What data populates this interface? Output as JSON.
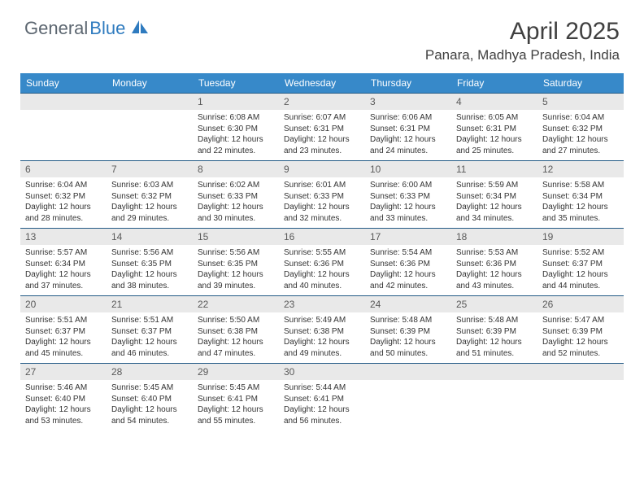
{
  "brand": {
    "name_a": "General",
    "name_b": "Blue"
  },
  "title": "April 2025",
  "location": "Panara, Madhya Pradesh, India",
  "day_headers": [
    "Sunday",
    "Monday",
    "Tuesday",
    "Wednesday",
    "Thursday",
    "Friday",
    "Saturday"
  ],
  "colors": {
    "header_bg": "#3789c9",
    "header_text": "#ffffff",
    "daynum_bg": "#e9e9e9",
    "cell_border": "#235a86"
  },
  "weeks": [
    [
      null,
      null,
      {
        "n": "1",
        "sunrise": "6:08 AM",
        "sunset": "6:30 PM",
        "daylight": "12 hours and 22 minutes."
      },
      {
        "n": "2",
        "sunrise": "6:07 AM",
        "sunset": "6:31 PM",
        "daylight": "12 hours and 23 minutes."
      },
      {
        "n": "3",
        "sunrise": "6:06 AM",
        "sunset": "6:31 PM",
        "daylight": "12 hours and 24 minutes."
      },
      {
        "n": "4",
        "sunrise": "6:05 AM",
        "sunset": "6:31 PM",
        "daylight": "12 hours and 25 minutes."
      },
      {
        "n": "5",
        "sunrise": "6:04 AM",
        "sunset": "6:32 PM",
        "daylight": "12 hours and 27 minutes."
      }
    ],
    [
      {
        "n": "6",
        "sunrise": "6:04 AM",
        "sunset": "6:32 PM",
        "daylight": "12 hours and 28 minutes."
      },
      {
        "n": "7",
        "sunrise": "6:03 AM",
        "sunset": "6:32 PM",
        "daylight": "12 hours and 29 minutes."
      },
      {
        "n": "8",
        "sunrise": "6:02 AM",
        "sunset": "6:33 PM",
        "daylight": "12 hours and 30 minutes."
      },
      {
        "n": "9",
        "sunrise": "6:01 AM",
        "sunset": "6:33 PM",
        "daylight": "12 hours and 32 minutes."
      },
      {
        "n": "10",
        "sunrise": "6:00 AM",
        "sunset": "6:33 PM",
        "daylight": "12 hours and 33 minutes."
      },
      {
        "n": "11",
        "sunrise": "5:59 AM",
        "sunset": "6:34 PM",
        "daylight": "12 hours and 34 minutes."
      },
      {
        "n": "12",
        "sunrise": "5:58 AM",
        "sunset": "6:34 PM",
        "daylight": "12 hours and 35 minutes."
      }
    ],
    [
      {
        "n": "13",
        "sunrise": "5:57 AM",
        "sunset": "6:34 PM",
        "daylight": "12 hours and 37 minutes."
      },
      {
        "n": "14",
        "sunrise": "5:56 AM",
        "sunset": "6:35 PM",
        "daylight": "12 hours and 38 minutes."
      },
      {
        "n": "15",
        "sunrise": "5:56 AM",
        "sunset": "6:35 PM",
        "daylight": "12 hours and 39 minutes."
      },
      {
        "n": "16",
        "sunrise": "5:55 AM",
        "sunset": "6:36 PM",
        "daylight": "12 hours and 40 minutes."
      },
      {
        "n": "17",
        "sunrise": "5:54 AM",
        "sunset": "6:36 PM",
        "daylight": "12 hours and 42 minutes."
      },
      {
        "n": "18",
        "sunrise": "5:53 AM",
        "sunset": "6:36 PM",
        "daylight": "12 hours and 43 minutes."
      },
      {
        "n": "19",
        "sunrise": "5:52 AM",
        "sunset": "6:37 PM",
        "daylight": "12 hours and 44 minutes."
      }
    ],
    [
      {
        "n": "20",
        "sunrise": "5:51 AM",
        "sunset": "6:37 PM",
        "daylight": "12 hours and 45 minutes."
      },
      {
        "n": "21",
        "sunrise": "5:51 AM",
        "sunset": "6:37 PM",
        "daylight": "12 hours and 46 minutes."
      },
      {
        "n": "22",
        "sunrise": "5:50 AM",
        "sunset": "6:38 PM",
        "daylight": "12 hours and 47 minutes."
      },
      {
        "n": "23",
        "sunrise": "5:49 AM",
        "sunset": "6:38 PM",
        "daylight": "12 hours and 49 minutes."
      },
      {
        "n": "24",
        "sunrise": "5:48 AM",
        "sunset": "6:39 PM",
        "daylight": "12 hours and 50 minutes."
      },
      {
        "n": "25",
        "sunrise": "5:48 AM",
        "sunset": "6:39 PM",
        "daylight": "12 hours and 51 minutes."
      },
      {
        "n": "26",
        "sunrise": "5:47 AM",
        "sunset": "6:39 PM",
        "daylight": "12 hours and 52 minutes."
      }
    ],
    [
      {
        "n": "27",
        "sunrise": "5:46 AM",
        "sunset": "6:40 PM",
        "daylight": "12 hours and 53 minutes."
      },
      {
        "n": "28",
        "sunrise": "5:45 AM",
        "sunset": "6:40 PM",
        "daylight": "12 hours and 54 minutes."
      },
      {
        "n": "29",
        "sunrise": "5:45 AM",
        "sunset": "6:41 PM",
        "daylight": "12 hours and 55 minutes."
      },
      {
        "n": "30",
        "sunrise": "5:44 AM",
        "sunset": "6:41 PM",
        "daylight": "12 hours and 56 minutes."
      },
      null,
      null,
      null
    ]
  ],
  "labels": {
    "sunrise": "Sunrise:",
    "sunset": "Sunset:",
    "daylight": "Daylight:"
  }
}
